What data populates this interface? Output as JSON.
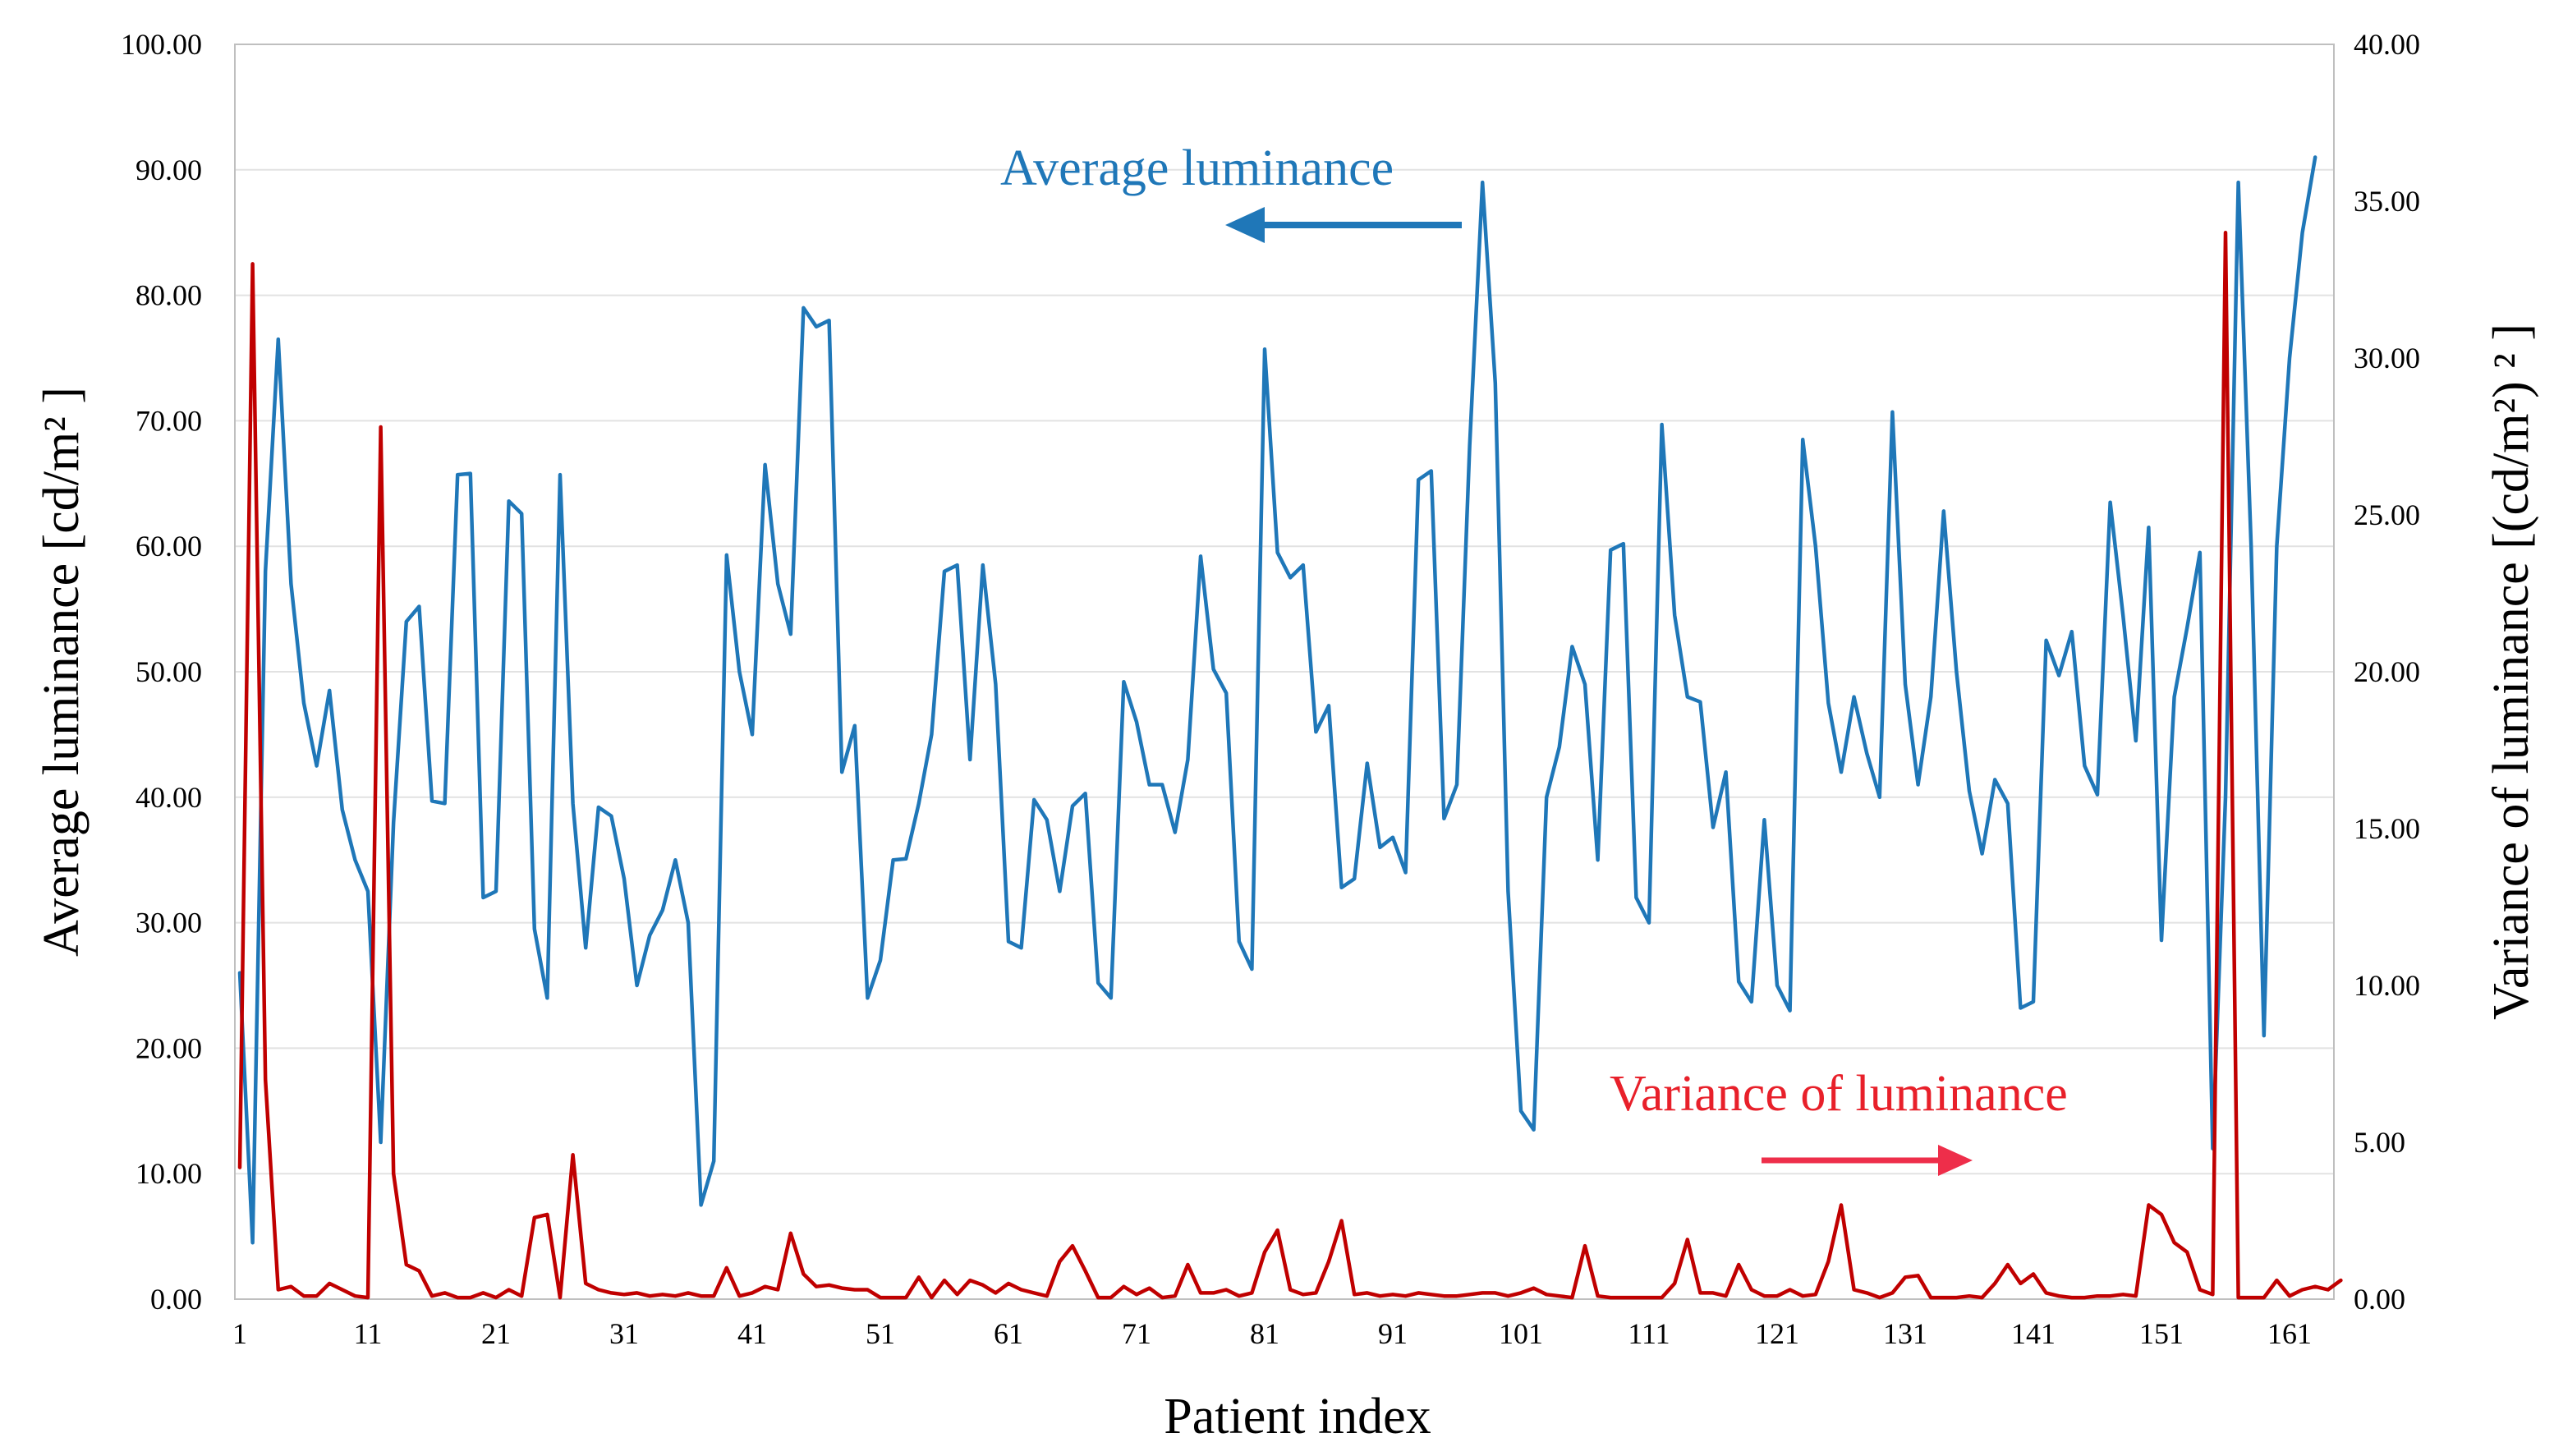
{
  "chart_data": {
    "type": "line",
    "xlabel": "Patient index",
    "ylabel_left": "Average luminance [cd/m² ]",
    "ylabel_right": "Variance of luminance [(cd/m²) ² ]",
    "ylim_left": [
      0,
      100
    ],
    "ylim_right": [
      0,
      40
    ],
    "y_ticks_left": [
      "0.00",
      "10.00",
      "20.00",
      "30.00",
      "40.00",
      "50.00",
      "60.00",
      "70.00",
      "80.00",
      "90.00",
      "100.00"
    ],
    "y_ticks_right": [
      "0.00",
      "5.00",
      "10.00",
      "15.00",
      "20.00",
      "25.00",
      "30.00",
      "35.00",
      "40.00"
    ],
    "x_ticks": [
      "1",
      "11",
      "21",
      "31",
      "41",
      "51",
      "61",
      "71",
      "81",
      "91",
      "101",
      "111",
      "121",
      "131",
      "141",
      "151",
      "161"
    ],
    "xlim": [
      1,
      164
    ],
    "grid": true,
    "annotations": {
      "average": "Average luminance",
      "variance": "Variance of luminance"
    },
    "series": [
      {
        "name": "Average luminance",
        "axis": "left",
        "color": "#1f77b8",
        "values": [
          26,
          4.5,
          58,
          76.5,
          57,
          47.5,
          42.5,
          48.5,
          39,
          35,
          32.5,
          12.5,
          38,
          54,
          55.2,
          39.7,
          39.5,
          65.7,
          65.8,
          32,
          32.5,
          63.6,
          62.6,
          29.5,
          24,
          65.7,
          39.5,
          28,
          39.2,
          38.5,
          33.5,
          25,
          29,
          31,
          35,
          30,
          7.5,
          11,
          59.3,
          50,
          45,
          66.5,
          57,
          53,
          79,
          77.5,
          78,
          42,
          45.7,
          24,
          27,
          35,
          35.1,
          39.5,
          45,
          58,
          58.5,
          43,
          58.5,
          49,
          28.5,
          28,
          39.8,
          38.2,
          32.5,
          39.3,
          40.3,
          25.2,
          24,
          49.2,
          46,
          41,
          41,
          37.2,
          43,
          59.2,
          50.2,
          48.3,
          28.5,
          26.3,
          75.7,
          59.5,
          57.5,
          58.5,
          45.2,
          47.3,
          32.8,
          33.5,
          42.7,
          36,
          36.8,
          34,
          65.3,
          66,
          38.3,
          41,
          68,
          89,
          73,
          32.5,
          15,
          13.5,
          40,
          44,
          52,
          49,
          35,
          59.7,
          60.2,
          32,
          30,
          69.7,
          54.5,
          48,
          47.6,
          37.6,
          42,
          25.3,
          23.7,
          38.2,
          25,
          23,
          68.5,
          60,
          47.5,
          42,
          48,
          43.5,
          40,
          70.7,
          49,
          41,
          48,
          62.8,
          50,
          40.5,
          35.5,
          41.4,
          39.5,
          23.2,
          23.7,
          52.5,
          49.7,
          53.2,
          42.5,
          40.2,
          63.5,
          54.5,
          44.5,
          61.5,
          28.6,
          48,
          53.5,
          59.5,
          12,
          40,
          89,
          60,
          21,
          60,
          75,
          85,
          91
        ]
      },
      {
        "name": "Variance of luminance",
        "axis": "right",
        "color": "#c00000",
        "values": [
          4.2,
          33,
          7,
          0.3,
          0.4,
          0.1,
          0.1,
          0.5,
          0.3,
          0.1,
          0.05,
          27.8,
          4,
          1.1,
          0.9,
          0.1,
          0.2,
          0.05,
          0.05,
          0.2,
          0.05,
          0.3,
          0.1,
          2.6,
          2.7,
          0.05,
          4.6,
          0.5,
          0.3,
          0.2,
          0.15,
          0.2,
          0.1,
          0.15,
          0.1,
          0.2,
          0.1,
          0.1,
          1,
          0.1,
          0.2,
          0.4,
          0.3,
          2.1,
          0.8,
          0.4,
          0.45,
          0.35,
          0.3,
          0.3,
          0.05,
          0.05,
          0.05,
          0.7,
          0.05,
          0.6,
          0.15,
          0.6,
          0.45,
          0.2,
          0.5,
          0.3,
          0.2,
          0.1,
          1.2,
          1.7,
          0.9,
          0.05,
          0.05,
          0.4,
          0.15,
          0.35,
          0.05,
          0.1,
          1.1,
          0.2,
          0.2,
          0.3,
          0.1,
          0.2,
          1.5,
          2.2,
          0.3,
          0.15,
          0.2,
          1.2,
          2.5,
          0.15,
          0.2,
          0.1,
          0.15,
          0.1,
          0.2,
          0.15,
          0.1,
          0.1,
          0.15,
          0.2,
          0.2,
          0.1,
          0.2,
          0.35,
          0.15,
          0.1,
          0.05,
          1.7,
          0.1,
          0.05,
          0.05,
          0.05,
          0.05,
          0.05,
          0.5,
          1.9,
          0.2,
          0.2,
          0.1,
          1.1,
          0.3,
          0.1,
          0.1,
          0.3,
          0.1,
          0.15,
          1.2,
          3,
          0.3,
          0.2,
          0.05,
          0.2,
          0.7,
          0.75,
          0.05,
          0.05,
          0.05,
          0.1,
          0.05,
          0.5,
          1.1,
          0.5,
          0.8,
          0.2,
          0.1,
          0.05,
          0.05,
          0.1,
          0.1,
          0.15,
          0.1,
          3,
          2.7,
          1.8,
          1.5,
          0.3,
          0.15,
          34,
          0.05,
          0.05,
          0.05,
          0.6,
          0.1,
          0.3,
          0.4,
          0.3,
          0.6
        ]
      }
    ]
  }
}
